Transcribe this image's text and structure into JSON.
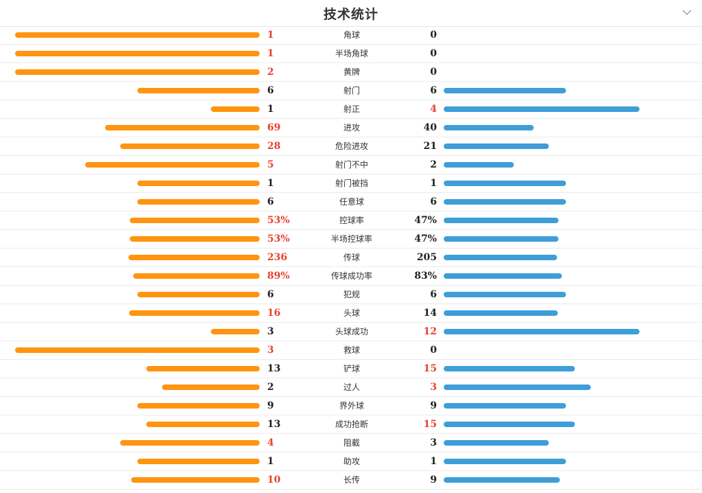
{
  "header": {
    "title": "技术统计"
  },
  "icons": {
    "collapse": "chevron-down-icon"
  },
  "colors": {
    "home_bar": "#ff9410",
    "away_bar": "#3e9ed8",
    "highlight": "#e8412f",
    "text": "#222222"
  },
  "chart_data": {
    "type": "bar",
    "orientation": "horizontal-diverging",
    "title": "技术统计",
    "categories": [
      "角球",
      "半场角球",
      "黄牌",
      "射门",
      "射正",
      "进攻",
      "危险进攻",
      "射门不中",
      "射门被挡",
      "任意球",
      "控球率",
      "半场控球率",
      "传球",
      "传球成功率",
      "犯规",
      "头球",
      "头球成功",
      "救球",
      "铲球",
      "过人",
      "界外球",
      "成功抢断",
      "阻截",
      "助攻",
      "长传"
    ],
    "home_labels": [
      "1",
      "1",
      "2",
      "6",
      "1",
      "69",
      "28",
      "5",
      "1",
      "6",
      "53%",
      "53%",
      "236",
      "89%",
      "6",
      "16",
      "3",
      "3",
      "13",
      "2",
      "9",
      "13",
      "4",
      "1",
      "10"
    ],
    "away_labels": [
      "0",
      "0",
      "0",
      "6",
      "4",
      "40",
      "21",
      "2",
      "1",
      "6",
      "47%",
      "47%",
      "205",
      "83%",
      "6",
      "14",
      "12",
      "0",
      "15",
      "3",
      "9",
      "15",
      "3",
      "1",
      "9"
    ],
    "home_values": [
      1,
      1,
      2,
      6,
      1,
      69,
      28,
      5,
      1,
      6,
      53,
      53,
      236,
      89,
      6,
      16,
      3,
      3,
      13,
      2,
      9,
      13,
      4,
      1,
      10
    ],
    "away_values": [
      0,
      0,
      0,
      6,
      4,
      40,
      21,
      2,
      1,
      6,
      47,
      47,
      205,
      83,
      6,
      14,
      12,
      0,
      15,
      3,
      9,
      15,
      3,
      1,
      9
    ]
  }
}
